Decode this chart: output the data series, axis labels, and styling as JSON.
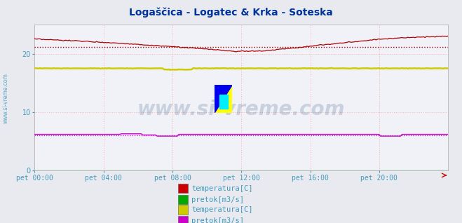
{
  "title": "Logaščica - Logatec & Krka - Soteska",
  "title_color": "#003399",
  "title_fontsize": 10,
  "bg_color": "#e8eaf0",
  "plot_bg_color": "#f0f2f8",
  "xlim": [
    0,
    288
  ],
  "ylim": [
    0,
    25
  ],
  "yticks": [
    0,
    10,
    20
  ],
  "xtick_labels": [
    "pet 00:00",
    "pet 04:00",
    "pet 08:00",
    "pet 12:00",
    "pet 16:00",
    "pet 20:00"
  ],
  "xtick_positions": [
    0,
    48,
    96,
    144,
    192,
    240
  ],
  "grid_color": "#ffb0b0",
  "watermark_text": "www.si-vreme.com",
  "watermark_color": "#1a3a6a",
  "watermark_alpha": 0.18,
  "watermark_fontsize": 20,
  "logascica_temp_color": "#aa0000",
  "logascica_temp_dash_value": 21.2,
  "logascica_pretok_color": "#00aa00",
  "logascica_pretok_value": 0.02,
  "krka_temp_color": "#cccc00",
  "krka_temp_value": 17.5,
  "krka_pretok_color": "#cc00cc",
  "krka_pretok_value": 6.2,
  "krka_pretok_dash_value": 6.0,
  "legend_text_color": "#4499bb",
  "axis_tick_color": "#4499bb",
  "axis_tick_fontsize": 7,
  "left_label_color": "#4499bb",
  "arrow_color": "#cc0000"
}
